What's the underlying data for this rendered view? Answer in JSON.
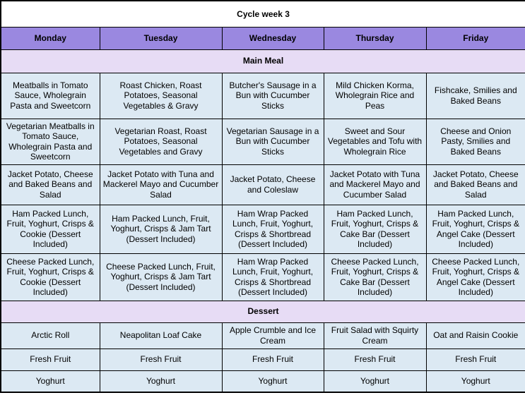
{
  "title": "Cycle week 3",
  "colors": {
    "day_header_bg": "#9a88e0",
    "section_header_bg": "#e7dcf5",
    "cell_bg": "#dce9f3",
    "border": "#000000",
    "text": "#000000",
    "title_bg": "#ffffff"
  },
  "days": [
    "Monday",
    "Tuesday",
    "Wednesday",
    "Thursday",
    "Friday"
  ],
  "sections": [
    {
      "label": "Main Meal",
      "rows": [
        [
          "Meatballs in Tomato Sauce, Wholegrain Pasta and Sweetcorn",
          "Roast Chicken, Roast Potatoes, Seasonal Vegetables & Gravy",
          "Butcher's Sausage in a Bun with Cucumber Sticks",
          "Mild Chicken Korma, Wholegrain Rice and Peas",
          "Fishcake, Smilies and Baked Beans"
        ],
        [
          "Vegetarian Meatballs in Tomato Sauce, Wholegrain Pasta and Sweetcorn",
          "Vegetarian Roast, Roast Potatoes, Seasonal Vegetables and Gravy",
          "Vegetarian Sausage in a Bun with Cucumber Sticks",
          "Sweet and Sour Vegetables and Tofu with Wholegrain Rice",
          "Cheese and Onion Pasty, Smilies and Baked Beans"
        ],
        [
          "Jacket Potato, Cheese and Baked Beans and Salad",
          "Jacket Potato with Tuna and Mackerel Mayo and Cucumber Salad",
          "Jacket Potato, Cheese and Coleslaw",
          "Jacket Potato with Tuna and Mackerel Mayo and Cucumber Salad",
          "Jacket Potato, Cheese and Baked Beans and Salad"
        ],
        [
          "Ham Packed Lunch, Fruit, Yoghurt, Crisps & Cookie (Dessert Included)",
          "Ham Packed Lunch, Fruit, Yoghurt, Crisps & Jam Tart (Dessert Included)",
          "Ham Wrap Packed Lunch, Fruit, Yoghurt, Crisps & Shortbread (Dessert Included)",
          "Ham Packed Lunch, Fruit, Yoghurt, Crisps & Cake Bar (Dessert Included)",
          "Ham Packed Lunch, Fruit, Yoghurt, Crisps & Angel Cake (Dessert Included)"
        ],
        [
          "Cheese Packed Lunch, Fruit, Yoghurt, Crisps & Cookie (Dessert Included)",
          "Cheese Packed Lunch, Fruit, Yoghurt, Crisps & Jam Tart (Dessert Included)",
          "Ham Wrap Packed Lunch, Fruit, Yoghurt, Crisps & Shortbread (Dessert Included)",
          "Cheese Packed Lunch, Fruit, Yoghurt, Crisps & Cake Bar (Dessert Included)",
          "Cheese Packed Lunch, Fruit, Yoghurt, Crisps & Angel Cake (Dessert Included)"
        ]
      ]
    },
    {
      "label": "Dessert",
      "rows": [
        [
          "Arctic Roll",
          "Neapolitan Loaf Cake",
          "Apple Crumble and Ice Cream",
          "Fruit Salad with Squirty Cream",
          "Oat and Raisin Cookie"
        ],
        [
          "Fresh Fruit",
          "Fresh Fruit",
          "Fresh Fruit",
          "Fresh Fruit",
          "Fresh Fruit"
        ],
        [
          "Yoghurt",
          "Yoghurt",
          "Yoghurt",
          "Yoghurt",
          "Yoghurt"
        ]
      ]
    }
  ]
}
